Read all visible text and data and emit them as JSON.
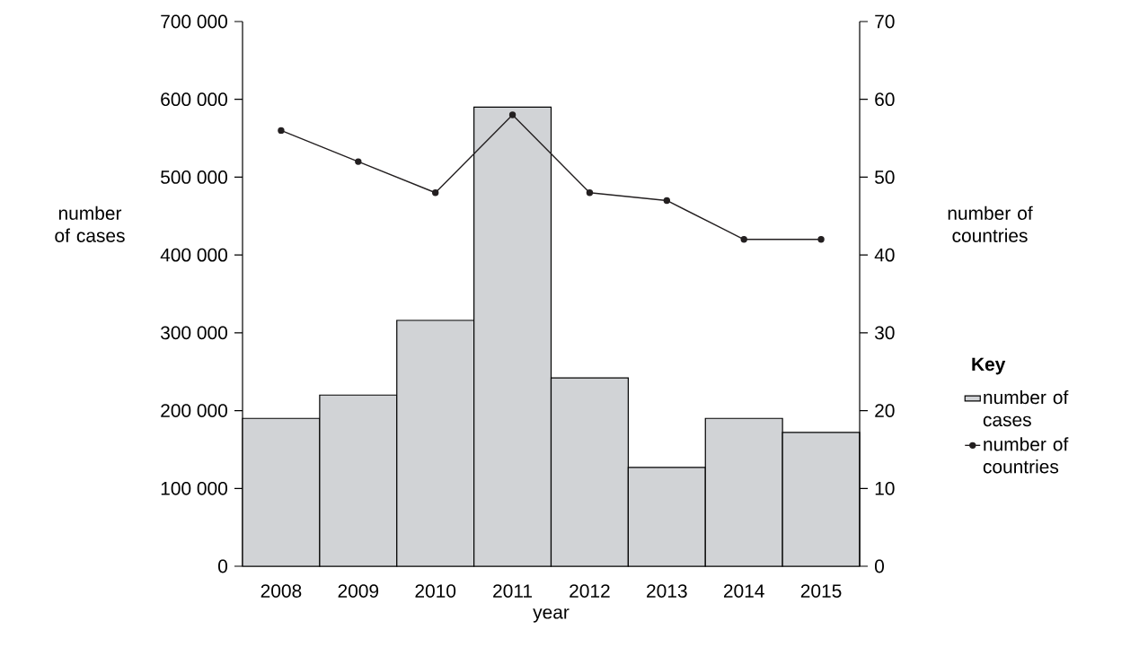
{
  "chart_data": {
    "type": "bar",
    "xlabel": "year",
    "ylabel": "number of cases",
    "y2label": "number of countries",
    "categories": [
      "2008",
      "2009",
      "2010",
      "2011",
      "2012",
      "2013",
      "2014",
      "2015"
    ],
    "series": [
      {
        "name": "number of cases",
        "type": "bar",
        "color": "#d1d3d6",
        "values": [
          190000,
          220000,
          316000,
          590000,
          242000,
          127000,
          190000,
          172000
        ]
      },
      {
        "name": "number of countries",
        "type": "line",
        "axis": "y2",
        "color": "#231f20",
        "values": [
          56,
          52,
          48,
          58,
          48,
          47,
          42,
          42
        ]
      }
    ],
    "ylim": [
      0,
      700000
    ],
    "yticks": [
      0,
      {
        "value": 100000,
        "label": "100 000"
      },
      {
        "value": 200000,
        "label": "200 000"
      },
      {
        "value": 300000,
        "label": "300 000"
      },
      {
        "value": 400000,
        "label": "400 000"
      },
      {
        "value": 500000,
        "label": "500 000"
      },
      {
        "value": 600000,
        "label": "600 000"
      },
      {
        "value": 700000,
        "label": "700 000"
      }
    ],
    "y2lim": [
      0,
      70
    ],
    "y2ticks": [
      0,
      10,
      20,
      30,
      40,
      50,
      60,
      70
    ],
    "legend": "right",
    "legend_title": "Key",
    "marker": "circle",
    "grid": false
  }
}
